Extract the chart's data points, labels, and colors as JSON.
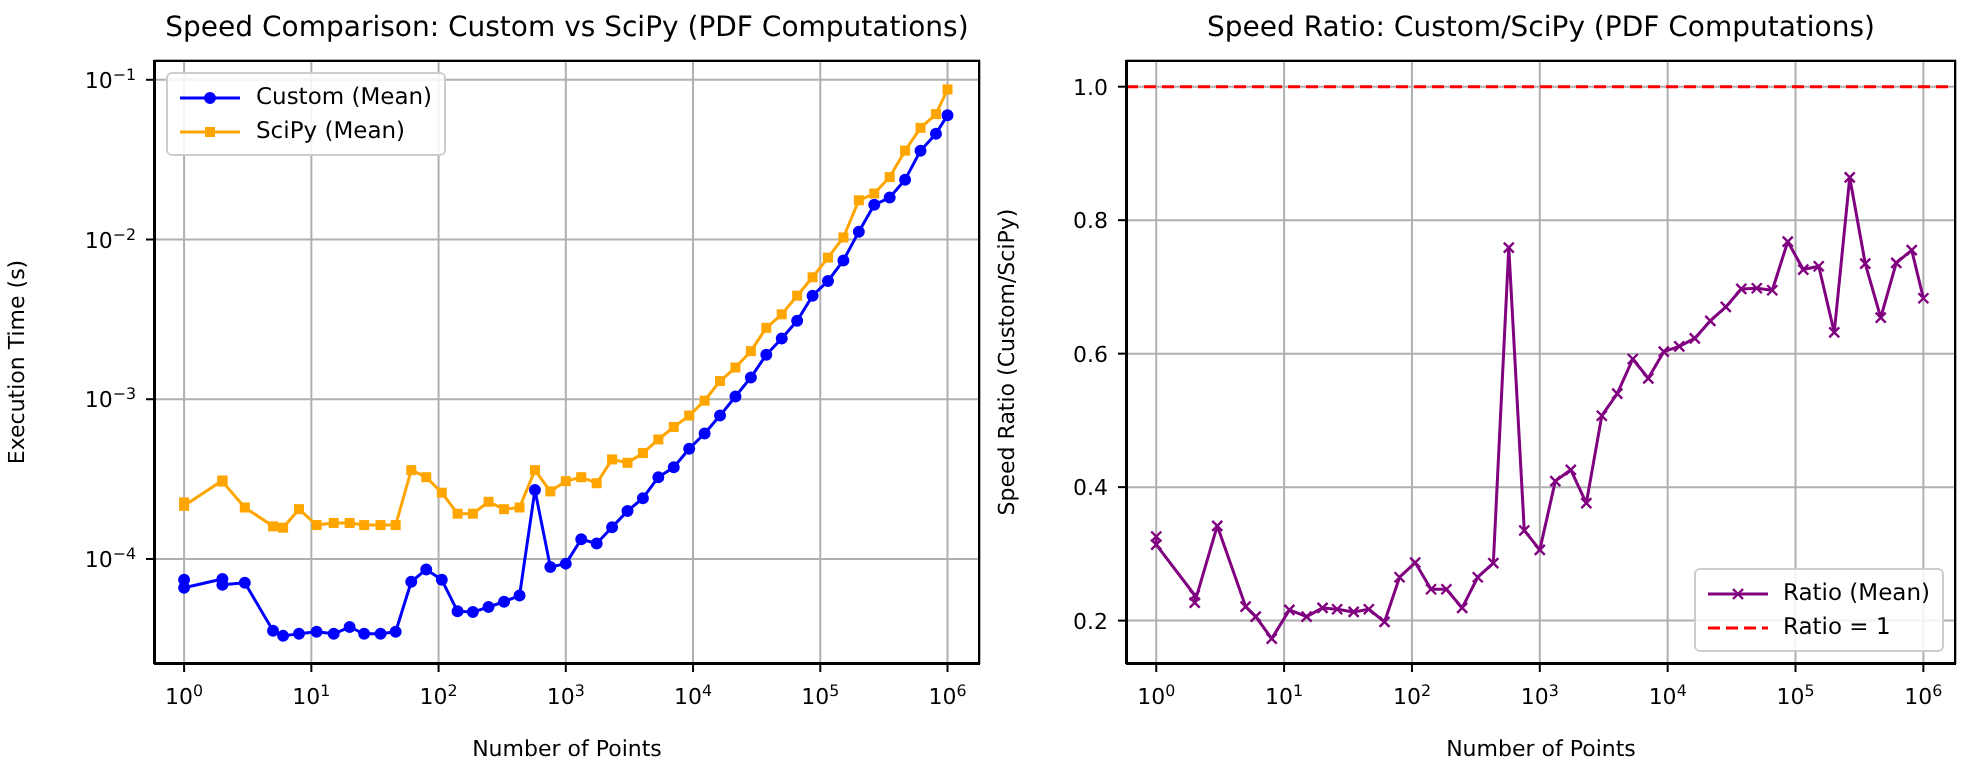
{
  "chart_data": [
    {
      "type": "line",
      "title": "Speed Comparison: Custom vs SciPy (PDF Computations)",
      "xlabel": "Number of Points",
      "ylabel": "Execution Time (s)",
      "log": "xy",
      "grid": true,
      "legend": "top left",
      "x": [
        1,
        1,
        2,
        2,
        3,
        5,
        6,
        8,
        11,
        15,
        20,
        26,
        35,
        46,
        61,
        80,
        106,
        141,
        186,
        247,
        327,
        433,
        572,
        756,
        1000,
        1322,
        1748,
        2310,
        3054,
        4036,
        5336,
        7054,
        9326,
        12328,
        16298,
        21544,
        28480,
        37649,
        49770,
        65793,
        86975,
        114976,
        151991,
        200923,
        265609,
        351119,
        464159,
        613590,
        811131,
        1000000
      ],
      "xlim": [
        0.58,
        1800000
      ],
      "xticks": [
        {
          "value": 1,
          "label": "10$^{0}$"
        },
        {
          "value": 10,
          "label": "10$^{1}$"
        },
        {
          "value": 100,
          "label": "10$^{2}$"
        },
        {
          "value": 1000,
          "label": "10$^{3}$"
        },
        {
          "value": 10000,
          "label": "10$^{4}$"
        },
        {
          "value": 100000,
          "label": "10$^{5}$"
        },
        {
          "value": 1000000,
          "label": "10$^{6}$"
        }
      ],
      "ylim": [
        2.2e-05,
        0.133
      ],
      "yticks": [
        {
          "value": 0.0001,
          "label": "10$^{−4}$"
        },
        {
          "value": 0.001,
          "label": "10$^{−3}$"
        },
        {
          "value": 0.01,
          "label": "10$^{−2}$"
        },
        {
          "value": 0.1,
          "label": "10$^{−1}$"
        }
      ],
      "series": [
        {
          "name": "Custom (Mean)",
          "color": "#0000ff",
          "marker": "circle",
          "values": [
            7.4e-05,
            6.6e-05,
            7.5e-05,
            6.9e-05,
            7.1e-05,
            3.55e-05,
            3.3e-05,
            3.4e-05,
            3.5e-05,
            3.4e-05,
            3.75e-05,
            3.4e-05,
            3.4e-05,
            3.5e-05,
            7.2e-05,
            8.6e-05,
            7.4e-05,
            4.7e-05,
            4.65e-05,
            5e-05,
            5.4e-05,
            5.9e-05,
            0.00027,
            8.9e-05,
            9.35e-05,
            0.000133,
            0.000125,
            0.000158,
            0.0002,
            0.00024,
            0.000325,
            0.000375,
            0.00049,
            0.00061,
            0.00079,
            0.00104,
            0.00137,
            0.0019,
            0.0024,
            0.0031,
            0.00445,
            0.0055,
            0.0074,
            0.0112,
            0.0165,
            0.0183,
            0.0237,
            0.036,
            0.046,
            0.06
          ]
        },
        {
          "name": "SciPy (Mean)",
          "color": "#ffa500",
          "marker": "square",
          "values": [
            0.000226,
            0.000215,
            0.00031,
            0.000305,
            0.00021,
            0.00016,
            0.000157,
            0.000205,
            0.000163,
            0.000168,
            0.000168,
            0.000163,
            0.000163,
            0.000163,
            0.00036,
            0.000325,
            0.00026,
            0.000192,
            0.000192,
            0.000228,
            0.000205,
            0.00021,
            0.00036,
            0.000265,
            0.000307,
            0.000325,
            0.000298,
            0.00042,
            0.0004,
            0.00046,
            0.00056,
            0.00067,
            0.00079,
            0.00098,
            0.0013,
            0.00158,
            0.002,
            0.0028,
            0.0034,
            0.00445,
            0.0058,
            0.0077,
            0.0103,
            0.0176,
            0.0194,
            0.0246,
            0.036,
            0.05,
            0.061,
            0.087
          ]
        }
      ]
    },
    {
      "type": "line",
      "title": "Speed Ratio: Custom/SciPy (PDF Computations)",
      "xlabel": "Number of Points",
      "ylabel": "Speed Ratio (Custom/SciPy)",
      "log": "x",
      "grid": true,
      "legend": "bottom right",
      "x": [
        1,
        1,
        2,
        2,
        3,
        5,
        6,
        8,
        11,
        15,
        20,
        26,
        35,
        46,
        61,
        80,
        106,
        141,
        186,
        247,
        327,
        433,
        572,
        756,
        1000,
        1322,
        1748,
        2310,
        3054,
        4036,
        5336,
        7054,
        9326,
        12328,
        16298,
        21544,
        28480,
        37649,
        49770,
        65793,
        86975,
        114976,
        151991,
        200923,
        265609,
        351119,
        464159,
        613590,
        811131,
        1000000
      ],
      "xlim": [
        0.58,
        1800000
      ],
      "xticks": [
        {
          "value": 1,
          "label": "10$^{0}$"
        },
        {
          "value": 10,
          "label": "10$^{1}$"
        },
        {
          "value": 100,
          "label": "10$^{2}$"
        },
        {
          "value": 1000,
          "label": "10$^{3}$"
        },
        {
          "value": 10000,
          "label": "10$^{4}$"
        },
        {
          "value": 100000,
          "label": "10$^{5}$"
        },
        {
          "value": 1000000,
          "label": "10$^{6}$"
        }
      ],
      "ylim": [
        0.135,
        1.04
      ],
      "yticks": [
        {
          "value": 0.2,
          "label": "0.2"
        },
        {
          "value": 0.4,
          "label": "0.4"
        },
        {
          "value": 0.6,
          "label": "0.6"
        },
        {
          "value": 0.8,
          "label": "0.8"
        },
        {
          "value": 1.0,
          "label": "1.0"
        }
      ],
      "series": [
        {
          "name": "Ratio (Mean)",
          "color": "#800080",
          "marker": "cross",
          "values": [
            0.326,
            0.314,
            0.238,
            0.227,
            0.342,
            0.221,
            0.206,
            0.173,
            0.216,
            0.206,
            0.219,
            0.217,
            0.213,
            0.217,
            0.198,
            0.265,
            0.287,
            0.247,
            0.247,
            0.219,
            0.265,
            0.286,
            0.759,
            0.335,
            0.306,
            0.409,
            0.426,
            0.376,
            0.507,
            0.54,
            0.592,
            0.563,
            0.603,
            0.611,
            0.623,
            0.649,
            0.67,
            0.697,
            0.698,
            0.695,
            0.768,
            0.726,
            0.731,
            0.632,
            0.864,
            0.735,
            0.654,
            0.736,
            0.755,
            0.683
          ]
        }
      ],
      "ref_lines": [
        {
          "axis": "y",
          "value": 1.0,
          "label": "Ratio = 1",
          "color": "#ff0000",
          "line_style": "dashed"
        }
      ]
    }
  ]
}
